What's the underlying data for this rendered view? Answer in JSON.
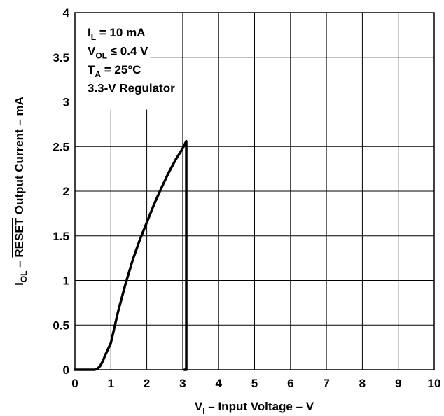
{
  "chart_data": {
    "type": "line",
    "title": "",
    "xlabel": {
      "main": "V",
      "sub": "I",
      "rest": " – Input Voltage – V"
    },
    "ylabel": {
      "main": "I",
      "sub": "OL",
      "dash": " – ",
      "overline": "RESET",
      "rest": " Output Current – mA"
    },
    "xlim": [
      0,
      10
    ],
    "ylim": [
      0,
      4
    ],
    "x_ticks": [
      0,
      1,
      2,
      3,
      4,
      5,
      6,
      7,
      8,
      9,
      10
    ],
    "x_tick_labels": [
      "0",
      "1",
      "2",
      "3",
      "4",
      "5",
      "6",
      "7",
      "8",
      "9",
      "10"
    ],
    "y_ticks": [
      0,
      0.5,
      1,
      1.5,
      2,
      2.5,
      3,
      3.5,
      4
    ],
    "y_tick_labels": [
      "0",
      "0.5",
      "1",
      "1.5",
      "2",
      "2.5",
      "3",
      "3.5",
      "4"
    ],
    "grid": true,
    "annotations": [
      {
        "main": "I",
        "sub": "L",
        "rest": " = 10 mA"
      },
      {
        "main": "V",
        "sub": "OL",
        "rest": " ≤ 0.4 V"
      },
      {
        "main": "T",
        "sub": "A",
        "rest": " = 25°C"
      },
      {
        "main": "3.3-V Regulator",
        "sub": "",
        "rest": ""
      }
    ],
    "series": [
      {
        "color": "#000000",
        "x": [
          0,
          0.55,
          0.62,
          0.7,
          0.78,
          0.85,
          0.92,
          1.0,
          1.2,
          1.4,
          1.6,
          1.8,
          2.0,
          2.2,
          2.4,
          2.6,
          2.8,
          3.0,
          3.1,
          3.1,
          3.05
        ],
        "y": [
          0,
          0,
          0.01,
          0.04,
          0.1,
          0.17,
          0.23,
          0.3,
          0.65,
          0.95,
          1.22,
          1.45,
          1.65,
          1.85,
          2.03,
          2.2,
          2.35,
          2.48,
          2.56,
          0,
          0
        ]
      }
    ]
  }
}
